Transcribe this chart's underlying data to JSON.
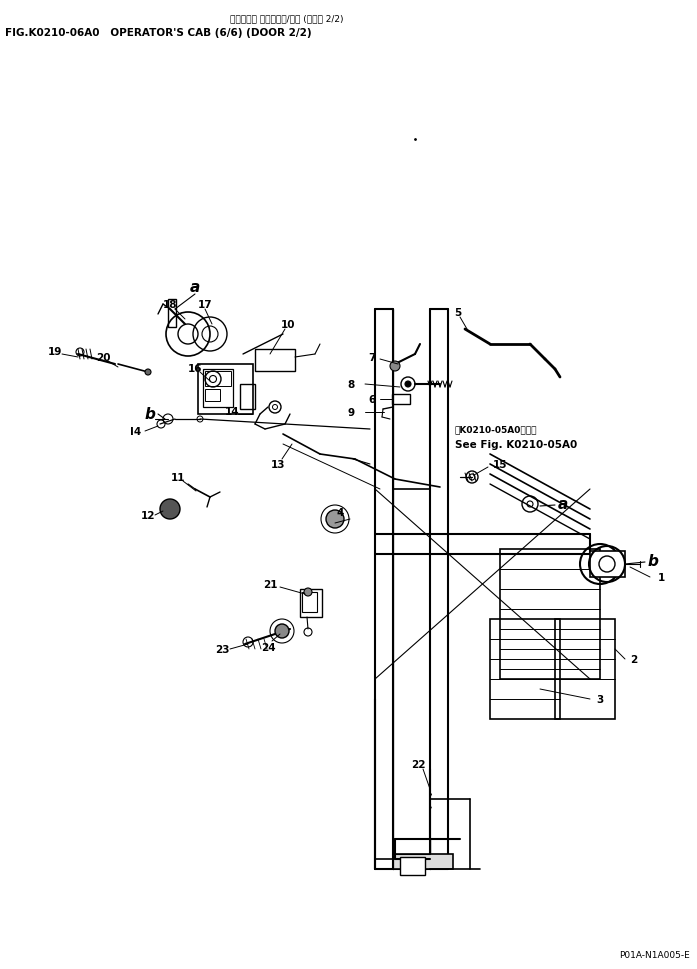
{
  "title_jp": "オペレータ キャブ（６/６） (ドアー 2/2)",
  "title_en": "FIG.K0210-06A0   OPERATOR'S CAB (6/6) (DOOR 2/2)",
  "footer": "P01A-N1A005-E",
  "see_fig_jp": "第K0210-05A0図参照",
  "see_fig_en": "See Fig. K0210-05A0",
  "bg_color": "#ffffff",
  "line_color": "#000000",
  "text_color": "#000000"
}
